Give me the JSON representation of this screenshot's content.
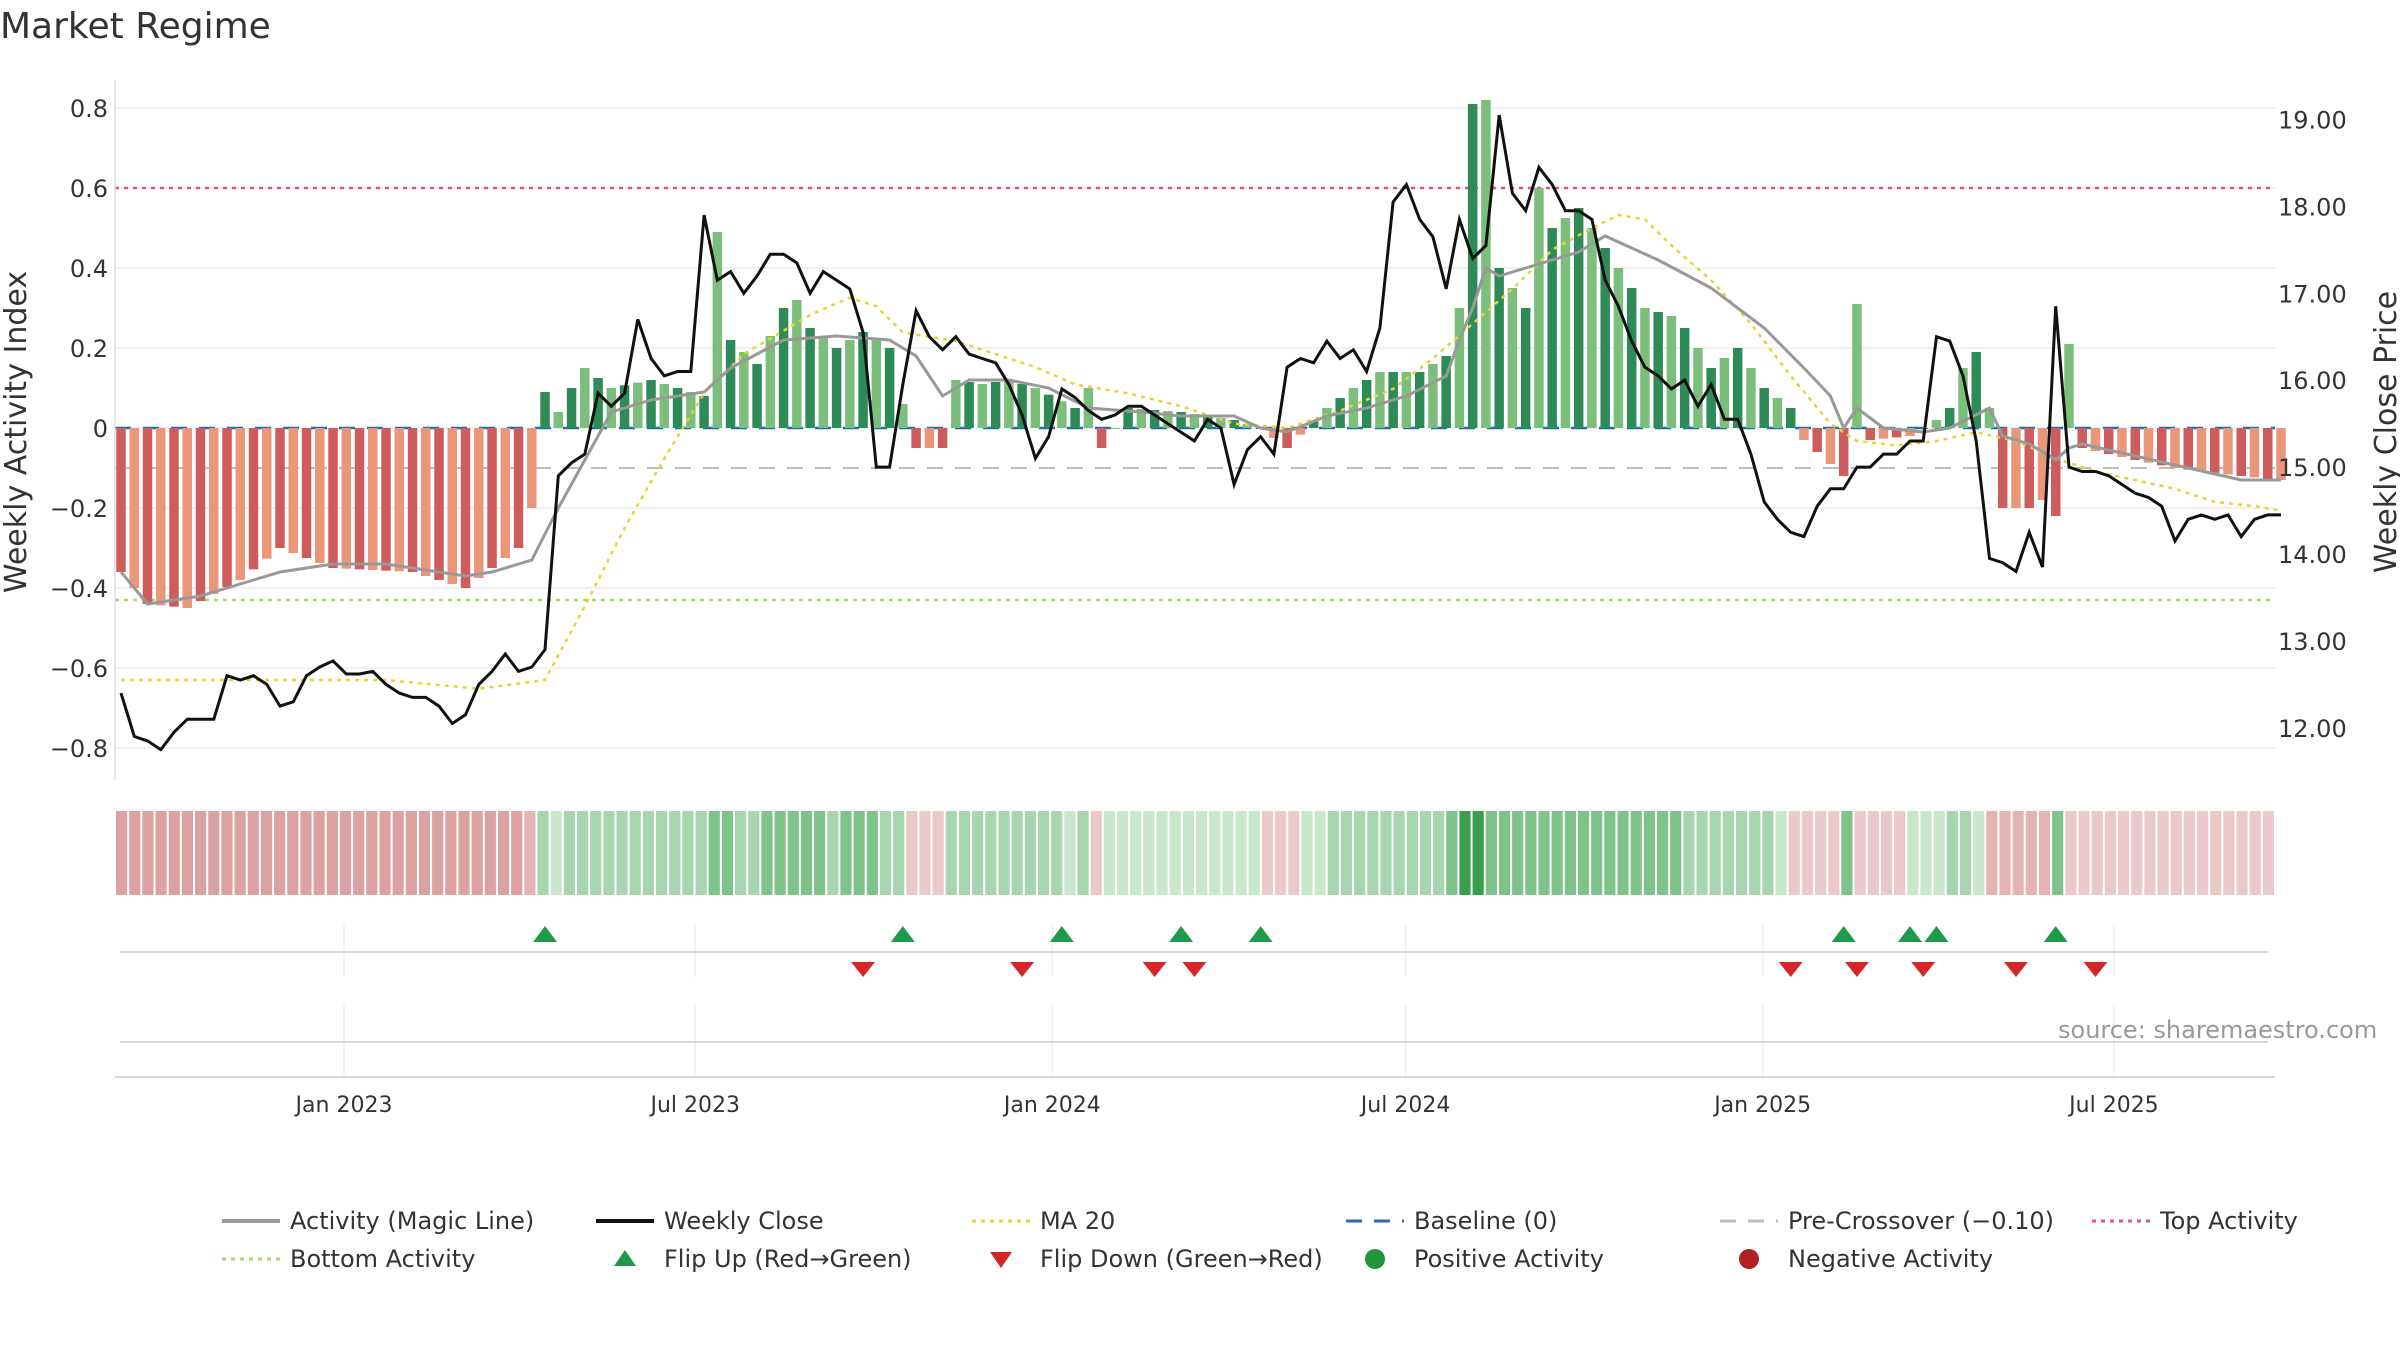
{
  "title": "Market Regime",
  "source": "source: sharemaestro.com",
  "chart_data": {
    "type": "bar",
    "title": "Market Regime",
    "ylabel_left": "Weekly Activity Index",
    "ylabel_right": "Weekly Close Price",
    "ylim_left": [
      -0.88,
      0.88
    ],
    "ylim_right": [
      11.4,
      19.5
    ],
    "yticks_left": [
      "0.8",
      "0.6",
      "0.4",
      "0.2",
      "0",
      "−0.2",
      "−0.4",
      "−0.6",
      "−0.8"
    ],
    "yticks_left_values": [
      0.8,
      0.6,
      0.4,
      0.2,
      0,
      -0.2,
      -0.4,
      -0.6,
      -0.8
    ],
    "yticks_right": [
      "19.00",
      "18.00",
      "17.00",
      "16.00",
      "15.00",
      "14.00",
      "13.00",
      "12.00"
    ],
    "yticks_right_values": [
      19,
      18,
      17,
      16,
      15,
      14,
      13,
      12
    ],
    "x_start": "2022-09-05",
    "x_end": "2025-09-22",
    "xticks": [
      {
        "label": "Jan 2023",
        "date": "2023-01-01"
      },
      {
        "label": "Jul 2023",
        "date": "2023-07-01"
      },
      {
        "label": "Jan 2024",
        "date": "2024-01-01"
      },
      {
        "label": "Jul 2024",
        "date": "2024-07-01"
      },
      {
        "label": "Jan 2025",
        "date": "2025-01-01"
      },
      {
        "label": "Jul 2025",
        "date": "2025-07-01"
      }
    ],
    "reference_lines": {
      "top_activity": 0.6,
      "bottom_activity": -0.43,
      "baseline": 0,
      "pre_crossover": -0.1
    },
    "activity_anchors": [
      [
        0,
        -0.36
      ],
      [
        2,
        -0.44
      ],
      [
        5,
        -0.45
      ],
      [
        9,
        -0.38
      ],
      [
        12,
        -0.3
      ],
      [
        16,
        -0.35
      ],
      [
        22,
        -0.36
      ],
      [
        26,
        -0.4
      ],
      [
        28,
        -0.35
      ],
      [
        30,
        -0.3
      ],
      [
        31,
        -0.2
      ],
      [
        32,
        0.09
      ],
      [
        33,
        0.04
      ],
      [
        34,
        0.1
      ],
      [
        35,
        0.15
      ],
      [
        37,
        0.1
      ],
      [
        40,
        0.12
      ],
      [
        44,
        0.08
      ],
      [
        45,
        0.49
      ],
      [
        46,
        0.22
      ],
      [
        48,
        0.16
      ],
      [
        50,
        0.3
      ],
      [
        51,
        0.32
      ],
      [
        52,
        0.25
      ],
      [
        54,
        0.2
      ],
      [
        56,
        0.24
      ],
      [
        58,
        0.2
      ],
      [
        59,
        0.06
      ],
      [
        60,
        -0.05
      ],
      [
        62,
        -0.05
      ],
      [
        63,
        0.12
      ],
      [
        65,
        0.11
      ],
      [
        67,
        0.12
      ],
      [
        69,
        0.1
      ],
      [
        72,
        0.05
      ],
      [
        73,
        0.1
      ],
      [
        74,
        -0.05
      ],
      [
        76,
        0.05
      ],
      [
        80,
        0.04
      ],
      [
        84,
        0.02
      ],
      [
        86,
        0.0
      ],
      [
        88,
        -0.05
      ],
      [
        91,
        0.05
      ],
      [
        93,
        0.1
      ],
      [
        95,
        0.14
      ],
      [
        98,
        0.14
      ],
      [
        100,
        0.18
      ],
      [
        101,
        0.3
      ],
      [
        102,
        0.81
      ],
      [
        103,
        0.82
      ],
      [
        104,
        0.4
      ],
      [
        106,
        0.3
      ],
      [
        107,
        0.6
      ],
      [
        108,
        0.5
      ],
      [
        110,
        0.55
      ],
      [
        111,
        0.5
      ],
      [
        113,
        0.4
      ],
      [
        115,
        0.3
      ],
      [
        117,
        0.28
      ],
      [
        118,
        0.25
      ],
      [
        120,
        0.15
      ],
      [
        122,
        0.2
      ],
      [
        124,
        0.1
      ],
      [
        126,
        0.05
      ],
      [
        127,
        -0.03
      ],
      [
        128,
        -0.06
      ],
      [
        129,
        -0.09
      ],
      [
        130,
        -0.12
      ],
      [
        131,
        0.31
      ],
      [
        132,
        -0.03
      ],
      [
        135,
        -0.02
      ],
      [
        137,
        0.02
      ],
      [
        138,
        0.05
      ],
      [
        139,
        0.15
      ],
      [
        140,
        0.19
      ],
      [
        141,
        0.05
      ],
      [
        142,
        -0.2
      ],
      [
        144,
        -0.2
      ],
      [
        145,
        -0.18
      ],
      [
        146,
        -0.22
      ],
      [
        147,
        0.21
      ],
      [
        148,
        -0.05
      ],
      [
        152,
        -0.08
      ],
      [
        155,
        -0.1
      ],
      [
        160,
        -0.12
      ],
      [
        163,
        -0.13
      ]
    ],
    "magic_anchors": [
      [
        0,
        -0.36
      ],
      [
        2,
        -0.44
      ],
      [
        6,
        -0.42
      ],
      [
        9,
        -0.39
      ],
      [
        12,
        -0.36
      ],
      [
        16,
        -0.34
      ],
      [
        20,
        -0.34
      ],
      [
        26,
        -0.37
      ],
      [
        28,
        -0.36
      ],
      [
        31,
        -0.33
      ],
      [
        33,
        -0.2
      ],
      [
        35,
        -0.08
      ],
      [
        37,
        0.04
      ],
      [
        40,
        0.07
      ],
      [
        44,
        0.09
      ],
      [
        46,
        0.15
      ],
      [
        50,
        0.22
      ],
      [
        54,
        0.23
      ],
      [
        58,
        0.22
      ],
      [
        60,
        0.18
      ],
      [
        62,
        0.08
      ],
      [
        64,
        0.12
      ],
      [
        67,
        0.12
      ],
      [
        70,
        0.1
      ],
      [
        73,
        0.05
      ],
      [
        77,
        0.04
      ],
      [
        80,
        0.03
      ],
      [
        84,
        0.03
      ],
      [
        86,
        0.0
      ],
      [
        88,
        -0.01
      ],
      [
        91,
        0.03
      ],
      [
        94,
        0.05
      ],
      [
        97,
        0.08
      ],
      [
        100,
        0.13
      ],
      [
        101,
        0.22
      ],
      [
        102,
        0.3
      ],
      [
        103,
        0.4
      ],
      [
        104,
        0.38
      ],
      [
        106,
        0.4
      ],
      [
        108,
        0.42
      ],
      [
        110,
        0.44
      ],
      [
        112,
        0.48
      ],
      [
        114,
        0.45
      ],
      [
        116,
        0.42
      ],
      [
        120,
        0.35
      ],
      [
        124,
        0.25
      ],
      [
        127,
        0.15
      ],
      [
        129,
        0.08
      ],
      [
        130,
        0.0
      ],
      [
        131,
        0.05
      ],
      [
        133,
        0.0
      ],
      [
        136,
        -0.01
      ],
      [
        138,
        0.0
      ],
      [
        141,
        0.05
      ],
      [
        142,
        -0.02
      ],
      [
        144,
        -0.04
      ],
      [
        146,
        -0.08
      ],
      [
        147,
        -0.05
      ],
      [
        148,
        -0.04
      ],
      [
        152,
        -0.07
      ],
      [
        156,
        -0.1
      ],
      [
        160,
        -0.13
      ],
      [
        163,
        -0.13
      ]
    ],
    "close_anchors": [
      [
        0,
        12.4
      ],
      [
        1,
        11.9
      ],
      [
        2,
        11.85
      ],
      [
        3,
        11.75
      ],
      [
        4,
        11.95
      ],
      [
        5,
        12.1
      ],
      [
        6,
        12.1
      ],
      [
        7,
        12.1
      ],
      [
        8,
        12.6
      ],
      [
        9,
        12.55
      ],
      [
        10,
        12.6
      ],
      [
        11,
        12.5
      ],
      [
        12,
        12.25
      ],
      [
        13,
        12.3
      ],
      [
        14,
        12.6
      ],
      [
        15,
        12.7
      ],
      [
        16,
        12.77
      ],
      [
        17,
        12.62
      ],
      [
        18,
        12.62
      ],
      [
        19,
        12.65
      ],
      [
        20,
        12.5
      ],
      [
        21,
        12.4
      ],
      [
        22,
        12.35
      ],
      [
        23,
        12.35
      ],
      [
        24,
        12.25
      ],
      [
        25,
        12.05
      ],
      [
        26,
        12.15
      ],
      [
        27,
        12.5
      ],
      [
        28,
        12.65
      ],
      [
        29,
        12.85
      ],
      [
        30,
        12.65
      ],
      [
        31,
        12.7
      ],
      [
        32,
        12.9
      ],
      [
        33,
        14.9
      ],
      [
        34,
        15.05
      ],
      [
        35,
        15.15
      ],
      [
        36,
        15.85
      ],
      [
        37,
        15.7
      ],
      [
        38,
        15.85
      ],
      [
        39,
        16.7
      ],
      [
        40,
        16.25
      ],
      [
        41,
        16.05
      ],
      [
        42,
        16.1
      ],
      [
        43,
        16.1
      ],
      [
        44,
        17.9
      ],
      [
        45,
        17.15
      ],
      [
        46,
        17.25
      ],
      [
        47,
        17.0
      ],
      [
        48,
        17.2
      ],
      [
        49,
        17.45
      ],
      [
        50,
        17.45
      ],
      [
        51,
        17.35
      ],
      [
        52,
        17.0
      ],
      [
        53,
        17.25
      ],
      [
        54,
        17.15
      ],
      [
        55,
        17.05
      ],
      [
        56,
        16.55
      ],
      [
        57,
        15.0
      ],
      [
        58,
        15.0
      ],
      [
        59,
        15.95
      ],
      [
        60,
        16.8
      ],
      [
        61,
        16.5
      ],
      [
        62,
        16.35
      ],
      [
        63,
        16.5
      ],
      [
        64,
        16.3
      ],
      [
        65,
        16.25
      ],
      [
        66,
        16.2
      ],
      [
        67,
        15.95
      ],
      [
        68,
        15.6
      ],
      [
        69,
        15.1
      ],
      [
        70,
        15.35
      ],
      [
        71,
        15.9
      ],
      [
        72,
        15.8
      ],
      [
        73,
        15.65
      ],
      [
        74,
        15.55
      ],
      [
        75,
        15.6
      ],
      [
        76,
        15.7
      ],
      [
        77,
        15.7
      ],
      [
        78,
        15.6
      ],
      [
        79,
        15.5
      ],
      [
        80,
        15.4
      ],
      [
        81,
        15.3
      ],
      [
        82,
        15.55
      ],
      [
        83,
        15.45
      ],
      [
        84,
        14.8
      ],
      [
        85,
        15.2
      ],
      [
        86,
        15.35
      ],
      [
        87,
        15.15
      ],
      [
        88,
        16.15
      ],
      [
        89,
        16.25
      ],
      [
        90,
        16.2
      ],
      [
        91,
        16.45
      ],
      [
        92,
        16.25
      ],
      [
        93,
        16.35
      ],
      [
        94,
        16.1
      ],
      [
        95,
        16.6
      ],
      [
        96,
        18.05
      ],
      [
        97,
        18.25
      ],
      [
        98,
        17.85
      ],
      [
        99,
        17.65
      ],
      [
        100,
        17.05
      ],
      [
        101,
        17.85
      ],
      [
        102,
        17.4
      ],
      [
        103,
        17.55
      ],
      [
        104,
        19.05
      ],
      [
        105,
        18.15
      ],
      [
        106,
        17.95
      ],
      [
        107,
        18.45
      ],
      [
        108,
        18.25
      ],
      [
        109,
        17.95
      ],
      [
        110,
        17.95
      ],
      [
        111,
        17.85
      ],
      [
        112,
        17.15
      ],
      [
        113,
        16.85
      ],
      [
        114,
        16.45
      ],
      [
        115,
        16.15
      ],
      [
        116,
        16.05
      ],
      [
        117,
        15.9
      ],
      [
        118,
        16.0
      ],
      [
        119,
        15.7
      ],
      [
        120,
        15.95
      ],
      [
        121,
        15.55
      ],
      [
        122,
        15.55
      ],
      [
        123,
        15.15
      ],
      [
        124,
        14.6
      ],
      [
        125,
        14.4
      ],
      [
        126,
        14.25
      ],
      [
        127,
        14.2
      ],
      [
        128,
        14.55
      ],
      [
        129,
        14.75
      ],
      [
        130,
        14.75
      ],
      [
        131,
        15.0
      ],
      [
        132,
        15.0
      ],
      [
        133,
        15.15
      ],
      [
        134,
        15.15
      ],
      [
        135,
        15.3
      ],
      [
        136,
        15.3
      ],
      [
        137,
        16.5
      ],
      [
        138,
        16.45
      ],
      [
        139,
        16.05
      ],
      [
        140,
        15.3
      ],
      [
        141,
        13.95
      ],
      [
        142,
        13.9
      ],
      [
        143,
        13.8
      ],
      [
        144,
        14.25
      ],
      [
        145,
        13.85
      ],
      [
        146,
        16.85
      ],
      [
        147,
        15.0
      ],
      [
        148,
        14.95
      ],
      [
        149,
        14.95
      ],
      [
        150,
        14.9
      ],
      [
        151,
        14.8
      ],
      [
        152,
        14.7
      ],
      [
        153,
        14.65
      ],
      [
        154,
        14.55
      ],
      [
        155,
        14.15
      ],
      [
        156,
        14.4
      ],
      [
        157,
        14.45
      ],
      [
        158,
        14.4
      ],
      [
        159,
        14.45
      ],
      [
        160,
        14.2
      ],
      [
        161,
        14.4
      ],
      [
        162,
        14.45
      ],
      [
        163,
        14.45
      ]
    ],
    "ma20_anchors": [
      [
        0,
        12.55
      ],
      [
        10,
        12.55
      ],
      [
        20,
        12.55
      ],
      [
        27,
        12.45
      ],
      [
        32,
        12.55
      ],
      [
        35,
        13.4
      ],
      [
        38,
        14.3
      ],
      [
        41,
        15.1
      ],
      [
        44,
        15.85
      ],
      [
        47,
        16.3
      ],
      [
        52,
        16.75
      ],
      [
        55,
        16.95
      ],
      [
        57,
        16.85
      ],
      [
        59,
        16.55
      ],
      [
        63,
        16.45
      ],
      [
        66,
        16.3
      ],
      [
        69,
        16.15
      ],
      [
        72,
        15.95
      ],
      [
        76,
        15.85
      ],
      [
        80,
        15.7
      ],
      [
        84,
        15.5
      ],
      [
        88,
        15.45
      ],
      [
        92,
        15.65
      ],
      [
        96,
        15.9
      ],
      [
        99,
        16.25
      ],
      [
        102,
        16.65
      ],
      [
        105,
        17.05
      ],
      [
        108,
        17.5
      ],
      [
        111,
        17.75
      ],
      [
        113,
        17.9
      ],
      [
        115,
        17.85
      ],
      [
        117,
        17.55
      ],
      [
        120,
        17.15
      ],
      [
        123,
        16.65
      ],
      [
        126,
        16.05
      ],
      [
        129,
        15.5
      ],
      [
        131,
        15.3
      ],
      [
        134,
        15.25
      ],
      [
        137,
        15.3
      ],
      [
        140,
        15.4
      ],
      [
        143,
        15.3
      ],
      [
        146,
        15.1
      ],
      [
        149,
        14.95
      ],
      [
        152,
        14.85
      ],
      [
        155,
        14.75
      ],
      [
        158,
        14.6
      ],
      [
        161,
        14.55
      ],
      [
        163,
        14.5
      ]
    ],
    "regime_strip": "0-31 weak red, 32-98 green, 62-64 and 74-75 and 84-89 light red, 99-101 strong green, 126-136 light red, 131 and 147 green, 141-146 red, 148-163 light red",
    "flip_up_indices": [
      32,
      59,
      71,
      80,
      86,
      130,
      135,
      137,
      146
    ],
    "flip_down_indices": [
      56,
      68,
      78,
      81,
      126,
      131,
      136,
      143,
      149
    ],
    "legend": [
      {
        "key": "magic",
        "label": "Activity (Magic Line)"
      },
      {
        "key": "close",
        "label": "Weekly Close"
      },
      {
        "key": "ma20",
        "label": "MA 20"
      },
      {
        "key": "baseline",
        "label": "Baseline (0)"
      },
      {
        "key": "precross",
        "label": "Pre-Crossover (−0.10)"
      },
      {
        "key": "top",
        "label": "Top Activity"
      },
      {
        "key": "bottom",
        "label": "Bottom Activity"
      },
      {
        "key": "flipup",
        "label": "Flip Up (Red→Green)"
      },
      {
        "key": "flipdown",
        "label": "Flip Down (Green→Red)"
      },
      {
        "key": "pos",
        "label": "Positive Activity"
      },
      {
        "key": "neg",
        "label": "Negative Activity"
      }
    ],
    "colors": {
      "bar_green_dark": "#2e8b57",
      "bar_green_light": "#7cbf7c",
      "bar_red_dark": "#cd5c5c",
      "bar_red_light": "#e9967a",
      "magic": "#999999",
      "close": "#111111",
      "ma20": "#e6d432",
      "baseline": "#1f6db4",
      "precross": "#bbbbbb",
      "top": "#e0557a",
      "bottom": "#a8d86a",
      "flip_up": "#1e9a4a",
      "flip_down": "#d62728",
      "positive": "#22963a",
      "negative": "#b22222"
    }
  }
}
